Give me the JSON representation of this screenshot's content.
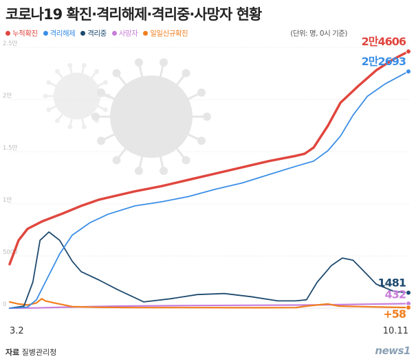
{
  "header": {
    "title": "코로나19 확진·격리해제·격리중·사망자 현황",
    "unit_note": "(단위: 명, 0시 기준)"
  },
  "legend": [
    {
      "label": "누적확진",
      "color": "#e0463e"
    },
    {
      "label": "격리해제",
      "color": "#3a8ee6"
    },
    {
      "label": "격리중",
      "color": "#1d4a6e"
    },
    {
      "label": "사망자",
      "color": "#c77dd9"
    },
    {
      "label": "일일신규확진",
      "color": "#f07e1d"
    }
  ],
  "footer": {
    "source_label": "자료",
    "source_value": "질병관리청",
    "logo": "news1"
  },
  "chart_data": {
    "type": "line",
    "title": "코로나19 확진·격리해제·격리중·사망자 현황",
    "xlabel": "",
    "ylabel": "",
    "x_ticks": [
      "3.2",
      "10.11"
    ],
    "y_ticks": [
      "0",
      "5000",
      "1만",
      "1.5만",
      "2만",
      "2.5만"
    ],
    "y_tick_values": [
      0,
      5000,
      10000,
      15000,
      20000,
      25000
    ],
    "ylim": [
      0,
      25000
    ],
    "x_range_days": [
      0,
      223
    ],
    "grid": true,
    "legend_position": "top-left",
    "series": [
      {
        "name": "누적확진",
        "color": "#e0463e",
        "points": [
          [
            0,
            4212
          ],
          [
            5,
            6500
          ],
          [
            10,
            7600
          ],
          [
            18,
            8300
          ],
          [
            30,
            9100
          ],
          [
            40,
            9800
          ],
          [
            50,
            10400
          ],
          [
            60,
            10800
          ],
          [
            70,
            11200
          ],
          [
            85,
            11700
          ],
          [
            100,
            12300
          ],
          [
            115,
            12900
          ],
          [
            130,
            13500
          ],
          [
            145,
            14100
          ],
          [
            160,
            14600
          ],
          [
            165,
            14800
          ],
          [
            170,
            15400
          ],
          [
            178,
            17500
          ],
          [
            185,
            19700
          ],
          [
            195,
            21300
          ],
          [
            205,
            22800
          ],
          [
            215,
            23900
          ],
          [
            223,
            24606
          ]
        ],
        "end_label": "2만4606"
      },
      {
        "name": "격리해제",
        "color": "#3a8ee6",
        "points": [
          [
            0,
            0
          ],
          [
            10,
            100
          ],
          [
            15,
            800
          ],
          [
            20,
            2500
          ],
          [
            28,
            5200
          ],
          [
            35,
            7000
          ],
          [
            45,
            8200
          ],
          [
            55,
            9000
          ],
          [
            70,
            9800
          ],
          [
            85,
            10200
          ],
          [
            100,
            10700
          ],
          [
            115,
            11400
          ],
          [
            130,
            12000
          ],
          [
            145,
            12800
          ],
          [
            160,
            13600
          ],
          [
            170,
            14100
          ],
          [
            178,
            15100
          ],
          [
            185,
            16500
          ],
          [
            192,
            18500
          ],
          [
            200,
            20300
          ],
          [
            210,
            21500
          ],
          [
            223,
            22693
          ]
        ],
        "end_label": "2만2693"
      },
      {
        "name": "격리중",
        "color": "#1d4a6e",
        "points": [
          [
            0,
            0
          ],
          [
            8,
            200
          ],
          [
            13,
            2500
          ],
          [
            17,
            6500
          ],
          [
            22,
            7300
          ],
          [
            28,
            6500
          ],
          [
            35,
            4500
          ],
          [
            40,
            3500
          ],
          [
            50,
            2700
          ],
          [
            60,
            1800
          ],
          [
            75,
            600
          ],
          [
            90,
            900
          ],
          [
            105,
            1300
          ],
          [
            120,
            1400
          ],
          [
            135,
            1100
          ],
          [
            150,
            700
          ],
          [
            160,
            700
          ],
          [
            166,
            800
          ],
          [
            172,
            2500
          ],
          [
            180,
            4100
          ],
          [
            186,
            4800
          ],
          [
            192,
            4600
          ],
          [
            200,
            3200
          ],
          [
            205,
            2300
          ],
          [
            215,
            1600
          ],
          [
            223,
            1481
          ]
        ],
        "end_label": "1481"
      },
      {
        "name": "사망자",
        "color": "#c77dd9",
        "points": [
          [
            0,
            0
          ],
          [
            15,
            20
          ],
          [
            30,
            90
          ],
          [
            60,
            200
          ],
          [
            100,
            250
          ],
          [
            140,
            280
          ],
          [
            170,
            300
          ],
          [
            200,
            380
          ],
          [
            223,
            432
          ]
        ],
        "end_label": "432"
      },
      {
        "name": "일일신규확진",
        "color": "#f07e1d",
        "points": [
          [
            0,
            600
          ],
          [
            5,
            400
          ],
          [
            10,
            300
          ],
          [
            15,
            500
          ],
          [
            18,
            900
          ],
          [
            20,
            700
          ],
          [
            25,
            500
          ],
          [
            35,
            150
          ],
          [
            50,
            80
          ],
          [
            70,
            50
          ],
          [
            100,
            50
          ],
          [
            140,
            40
          ],
          [
            160,
            50
          ],
          [
            166,
            200
          ],
          [
            172,
            300
          ],
          [
            178,
            400
          ],
          [
            184,
            200
          ],
          [
            195,
            150
          ],
          [
            210,
            100
          ],
          [
            223,
            58
          ]
        ],
        "end_label": "+58"
      }
    ]
  }
}
